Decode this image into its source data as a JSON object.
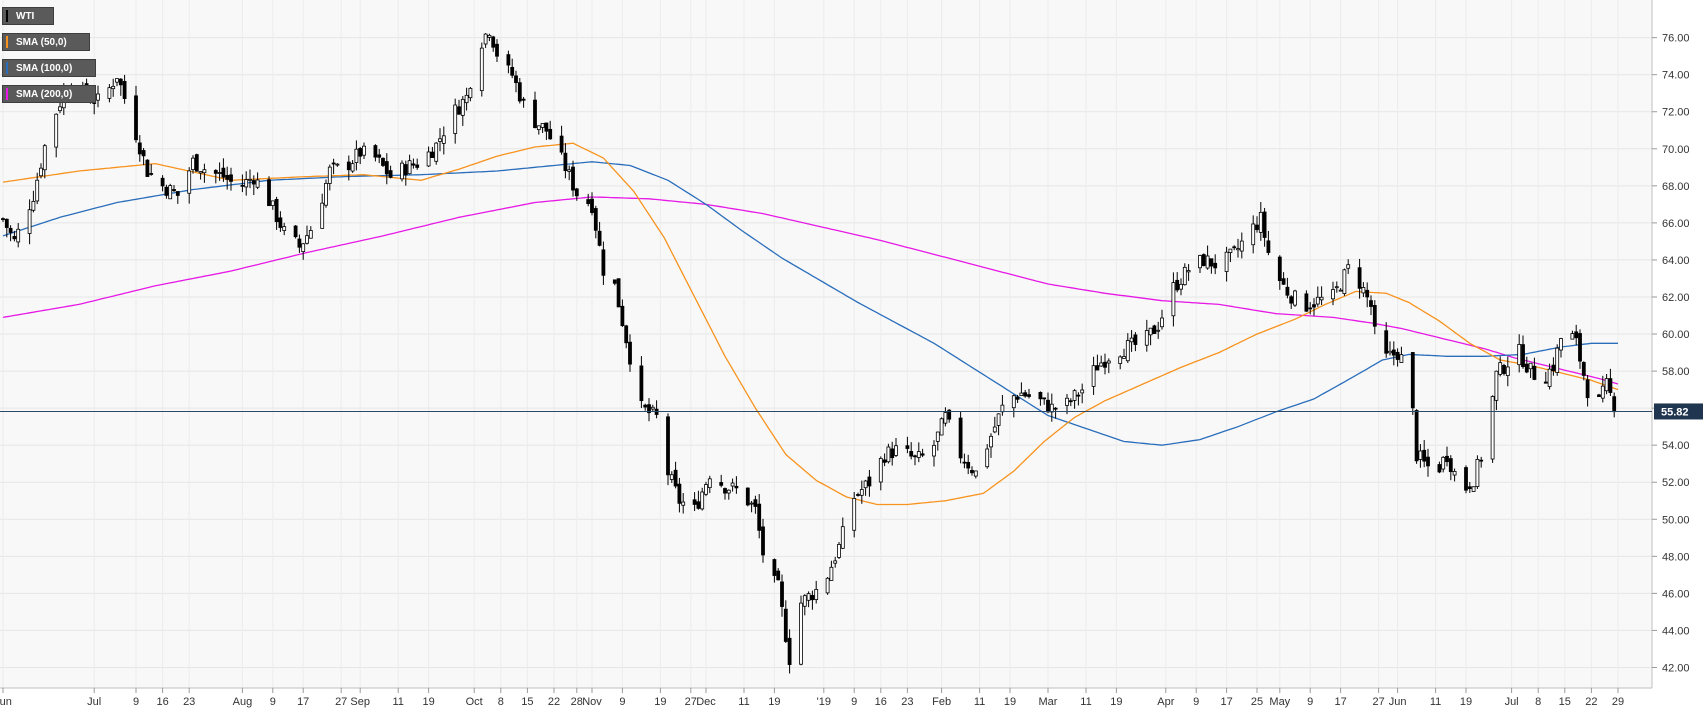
{
  "chart_data": {
    "type": "candlestick",
    "symbol": "WTI",
    "legend": [
      {
        "label": "WTI",
        "color": "#000000"
      },
      {
        "label": "SMA (50,0)",
        "color": "#f7931e"
      },
      {
        "label": "SMA (100,0)",
        "color": "#2a6ebb"
      },
      {
        "label": "SMA (200,0)",
        "color": "#e619e6"
      }
    ],
    "current_price": "55.82",
    "ylim": [
      41.0,
      77.6
    ],
    "y_ticks": [
      "42.00",
      "44.00",
      "46.00",
      "48.00",
      "50.00",
      "52.00",
      "54.00",
      "56.00",
      "58.00",
      "60.00",
      "62.00",
      "64.00",
      "66.00",
      "68.00",
      "70.00",
      "72.00",
      "74.00",
      "76.00"
    ],
    "x_ticks": [
      {
        "label": "Jun",
        "day": 0
      },
      {
        "label": "Jul",
        "day": 24
      },
      {
        "label": "9",
        "day": 35
      },
      {
        "label": "16",
        "day": 42
      },
      {
        "label": "23",
        "day": 49
      },
      {
        "label": "Aug",
        "day": 63
      },
      {
        "label": "9",
        "day": 71
      },
      {
        "label": "17",
        "day": 79
      },
      {
        "label": "27",
        "day": 89
      },
      {
        "label": "Sep",
        "day": 94
      },
      {
        "label": "11",
        "day": 104
      },
      {
        "label": "19",
        "day": 112
      },
      {
        "label": "Oct",
        "day": 124
      },
      {
        "label": "8",
        "day": 131
      },
      {
        "label": "15",
        "day": 138
      },
      {
        "label": "22",
        "day": 145
      },
      {
        "label": "28",
        "day": 151
      },
      {
        "label": "Nov",
        "day": 155
      },
      {
        "label": "9",
        "day": 163
      },
      {
        "label": "19",
        "day": 173
      },
      {
        "label": "27",
        "day": 181
      },
      {
        "label": "Dec",
        "day": 185
      },
      {
        "label": "11",
        "day": 195
      },
      {
        "label": "19",
        "day": 203
      },
      {
        "label": "'19",
        "day": 216
      },
      {
        "label": "9",
        "day": 224
      },
      {
        "label": "16",
        "day": 231
      },
      {
        "label": "23",
        "day": 238
      },
      {
        "label": "Feb",
        "day": 247
      },
      {
        "label": "11",
        "day": 257
      },
      {
        "label": "19",
        "day": 265
      },
      {
        "label": "Mar",
        "day": 275
      },
      {
        "label": "11",
        "day": 285
      },
      {
        "label": "19",
        "day": 293
      },
      {
        "label": "Apr",
        "day": 306
      },
      {
        "label": "9",
        "day": 314
      },
      {
        "label": "17",
        "day": 322
      },
      {
        "label": "25",
        "day": 330
      },
      {
        "label": "May",
        "day": 336
      },
      {
        "label": "9",
        "day": 344
      },
      {
        "label": "17",
        "day": 352
      },
      {
        "label": "27",
        "day": 362
      },
      {
        "label": "Jun",
        "day": 367
      },
      {
        "label": "11",
        "day": 377
      },
      {
        "label": "19",
        "day": 385
      },
      {
        "label": "Jul",
        "day": 397
      },
      {
        "label": "8",
        "day": 404
      },
      {
        "label": "15",
        "day": 411
      },
      {
        "label": "22",
        "day": 418
      },
      {
        "label": "29",
        "day": 425
      }
    ],
    "price_path": [
      [
        0,
        66.2
      ],
      [
        3,
        65.0
      ],
      [
        8,
        67.5
      ],
      [
        12,
        71.0
      ],
      [
        17,
        73.5
      ],
      [
        22,
        72.8
      ],
      [
        26,
        72.5
      ],
      [
        30,
        74.0
      ],
      [
        34,
        71.5
      ],
      [
        38,
        68.8
      ],
      [
        42,
        68.0
      ],
      [
        46,
        67.5
      ],
      [
        50,
        69.3
      ],
      [
        54,
        68.8
      ],
      [
        58,
        68.5
      ],
      [
        62,
        67.9
      ],
      [
        66,
        68.5
      ],
      [
        70,
        67.2
      ],
      [
        74,
        65.5
      ],
      [
        78,
        64.7
      ],
      [
        82,
        66.0
      ],
      [
        86,
        68.8
      ],
      [
        90,
        69.0
      ],
      [
        94,
        69.8
      ],
      [
        98,
        69.5
      ],
      [
        102,
        68.5
      ],
      [
        106,
        69.0
      ],
      [
        110,
        69.3
      ],
      [
        114,
        70.2
      ],
      [
        118,
        71.8
      ],
      [
        122,
        72.8
      ],
      [
        125,
        75.5
      ],
      [
        128,
        76.5
      ],
      [
        131,
        74.5
      ],
      [
        134,
        74.0
      ],
      [
        137,
        72.4
      ],
      [
        140,
        71.5
      ],
      [
        143,
        71.0
      ],
      [
        146,
        69.8
      ],
      [
        148,
        69.0
      ],
      [
        151,
        67.6
      ],
      [
        155,
        67.0
      ],
      [
        158,
        63.5
      ],
      [
        161,
        62.6
      ],
      [
        165,
        58.8
      ],
      [
        168,
        56.0
      ],
      [
        172,
        55.5
      ],
      [
        175,
        52.5
      ],
      [
        178,
        51.0
      ],
      [
        182,
        50.5
      ],
      [
        186,
        52.5
      ],
      [
        190,
        51.8
      ],
      [
        194,
        51.5
      ],
      [
        198,
        50.5
      ],
      [
        201,
        47.0
      ],
      [
        204,
        46.3
      ],
      [
        207,
        42.5
      ],
      [
        210,
        45.5
      ],
      [
        213,
        46.0
      ],
      [
        216,
        46.5
      ],
      [
        220,
        48.5
      ],
      [
        224,
        51.2
      ],
      [
        228,
        52.0
      ],
      [
        232,
        53.5
      ],
      [
        236,
        53.8
      ],
      [
        240,
        53.2
      ],
      [
        244,
        53.5
      ],
      [
        248,
        55.5
      ],
      [
        252,
        53.5
      ],
      [
        256,
        52.5
      ],
      [
        260,
        54.5
      ],
      [
        264,
        56.5
      ],
      [
        268,
        56.8
      ],
      [
        272,
        56.5
      ],
      [
        276,
        56.0
      ],
      [
        280,
        56.2
      ],
      [
        284,
        57.0
      ],
      [
        288,
        58.3
      ],
      [
        292,
        59.0
      ],
      [
        296,
        59.3
      ],
      [
        300,
        59.5
      ],
      [
        304,
        60.5
      ],
      [
        308,
        62.5
      ],
      [
        312,
        63.5
      ],
      [
        316,
        64.0
      ],
      [
        320,
        63.7
      ],
      [
        324,
        64.3
      ],
      [
        328,
        65.5
      ],
      [
        331,
        66.2
      ],
      [
        334,
        63.5
      ],
      [
        338,
        62.3
      ],
      [
        342,
        61.5
      ],
      [
        346,
        61.8
      ],
      [
        350,
        62.0
      ],
      [
        354,
        63.5
      ],
      [
        357,
        62.8
      ],
      [
        360,
        61.5
      ],
      [
        362,
        58.5
      ],
      [
        364,
        58.7
      ],
      [
        367,
        59.0
      ],
      [
        370,
        58.0
      ],
      [
        372,
        53.5
      ],
      [
        374,
        53.0
      ],
      [
        377,
        52.5
      ],
      [
        380,
        53.5
      ],
      [
        384,
        51.5
      ],
      [
        387,
        52.2
      ],
      [
        390,
        54.0
      ],
      [
        393,
        57.8
      ],
      [
        396,
        58.5
      ],
      [
        399,
        59.0
      ],
      [
        402,
        58.0
      ],
      [
        405,
        57.5
      ],
      [
        408,
        58.3
      ],
      [
        411,
        60.5
      ],
      [
        414,
        59.5
      ],
      [
        417,
        57.0
      ],
      [
        420,
        56.3
      ],
      [
        422,
        57.2
      ],
      [
        424,
        56.2
      ],
      [
        425,
        55.82
      ]
    ],
    "sma50_path": [
      [
        0,
        68.2
      ],
      [
        20,
        68.8
      ],
      [
        40,
        69.2
      ],
      [
        60,
        68.3
      ],
      [
        80,
        68.5
      ],
      [
        95,
        68.6
      ],
      [
        110,
        68.3
      ],
      [
        120,
        68.9
      ],
      [
        130,
        69.6
      ],
      [
        140,
        70.1
      ],
      [
        150,
        70.3
      ],
      [
        158,
        69.5
      ],
      [
        166,
        67.7
      ],
      [
        174,
        65.2
      ],
      [
        182,
        62.0
      ],
      [
        190,
        58.8
      ],
      [
        198,
        56.0
      ],
      [
        206,
        53.5
      ],
      [
        214,
        52.1
      ],
      [
        222,
        51.2
      ],
      [
        230,
        50.8
      ],
      [
        238,
        50.8
      ],
      [
        248,
        51.0
      ],
      [
        258,
        51.4
      ],
      [
        266,
        52.6
      ],
      [
        274,
        54.2
      ],
      [
        282,
        55.5
      ],
      [
        290,
        56.4
      ],
      [
        300,
        57.3
      ],
      [
        310,
        58.2
      ],
      [
        320,
        59.0
      ],
      [
        330,
        60.0
      ],
      [
        340,
        60.8
      ],
      [
        348,
        61.6
      ],
      [
        356,
        62.3
      ],
      [
        364,
        62.2
      ],
      [
        370,
        61.7
      ],
      [
        378,
        60.7
      ],
      [
        386,
        59.5
      ],
      [
        394,
        58.6
      ],
      [
        402,
        58.3
      ],
      [
        410,
        57.9
      ],
      [
        418,
        57.5
      ],
      [
        425,
        57.0
      ]
    ],
    "sma100_path": [
      [
        0,
        65.3
      ],
      [
        15,
        66.3
      ],
      [
        30,
        67.1
      ],
      [
        50,
        67.8
      ],
      [
        70,
        68.3
      ],
      [
        90,
        68.5
      ],
      [
        110,
        68.6
      ],
      [
        130,
        68.8
      ],
      [
        145,
        69.1
      ],
      [
        155,
        69.3
      ],
      [
        165,
        69.1
      ],
      [
        175,
        68.3
      ],
      [
        185,
        67.0
      ],
      [
        195,
        65.5
      ],
      [
        205,
        64.1
      ],
      [
        215,
        62.9
      ],
      [
        225,
        61.7
      ],
      [
        235,
        60.6
      ],
      [
        245,
        59.5
      ],
      [
        255,
        58.2
      ],
      [
        265,
        56.9
      ],
      [
        275,
        55.6
      ],
      [
        285,
        54.9
      ],
      [
        295,
        54.2
      ],
      [
        305,
        54.0
      ],
      [
        315,
        54.3
      ],
      [
        325,
        55.0
      ],
      [
        335,
        55.8
      ],
      [
        345,
        56.5
      ],
      [
        352,
        57.3
      ],
      [
        358,
        58.0
      ],
      [
        363,
        58.6
      ],
      [
        370,
        58.9
      ],
      [
        380,
        58.8
      ],
      [
        390,
        58.8
      ],
      [
        400,
        58.9
      ],
      [
        410,
        59.3
      ],
      [
        418,
        59.5
      ],
      [
        425,
        59.5
      ]
    ],
    "sma200_path": [
      [
        0,
        60.9
      ],
      [
        20,
        61.6
      ],
      [
        40,
        62.6
      ],
      [
        60,
        63.4
      ],
      [
        80,
        64.4
      ],
      [
        100,
        65.3
      ],
      [
        120,
        66.3
      ],
      [
        140,
        67.1
      ],
      [
        155,
        67.4
      ],
      [
        170,
        67.3
      ],
      [
        185,
        67.0
      ],
      [
        200,
        66.5
      ],
      [
        215,
        65.8
      ],
      [
        230,
        65.1
      ],
      [
        245,
        64.3
      ],
      [
        260,
        63.5
      ],
      [
        275,
        62.7
      ],
      [
        290,
        62.2
      ],
      [
        305,
        61.8
      ],
      [
        320,
        61.6
      ],
      [
        335,
        61.1
      ],
      [
        350,
        60.9
      ],
      [
        360,
        60.6
      ],
      [
        368,
        60.3
      ],
      [
        374,
        60.0
      ],
      [
        382,
        59.6
      ],
      [
        390,
        59.2
      ],
      [
        398,
        58.7
      ],
      [
        406,
        58.3
      ],
      [
        414,
        57.9
      ],
      [
        420,
        57.6
      ],
      [
        425,
        57.3
      ]
    ]
  }
}
